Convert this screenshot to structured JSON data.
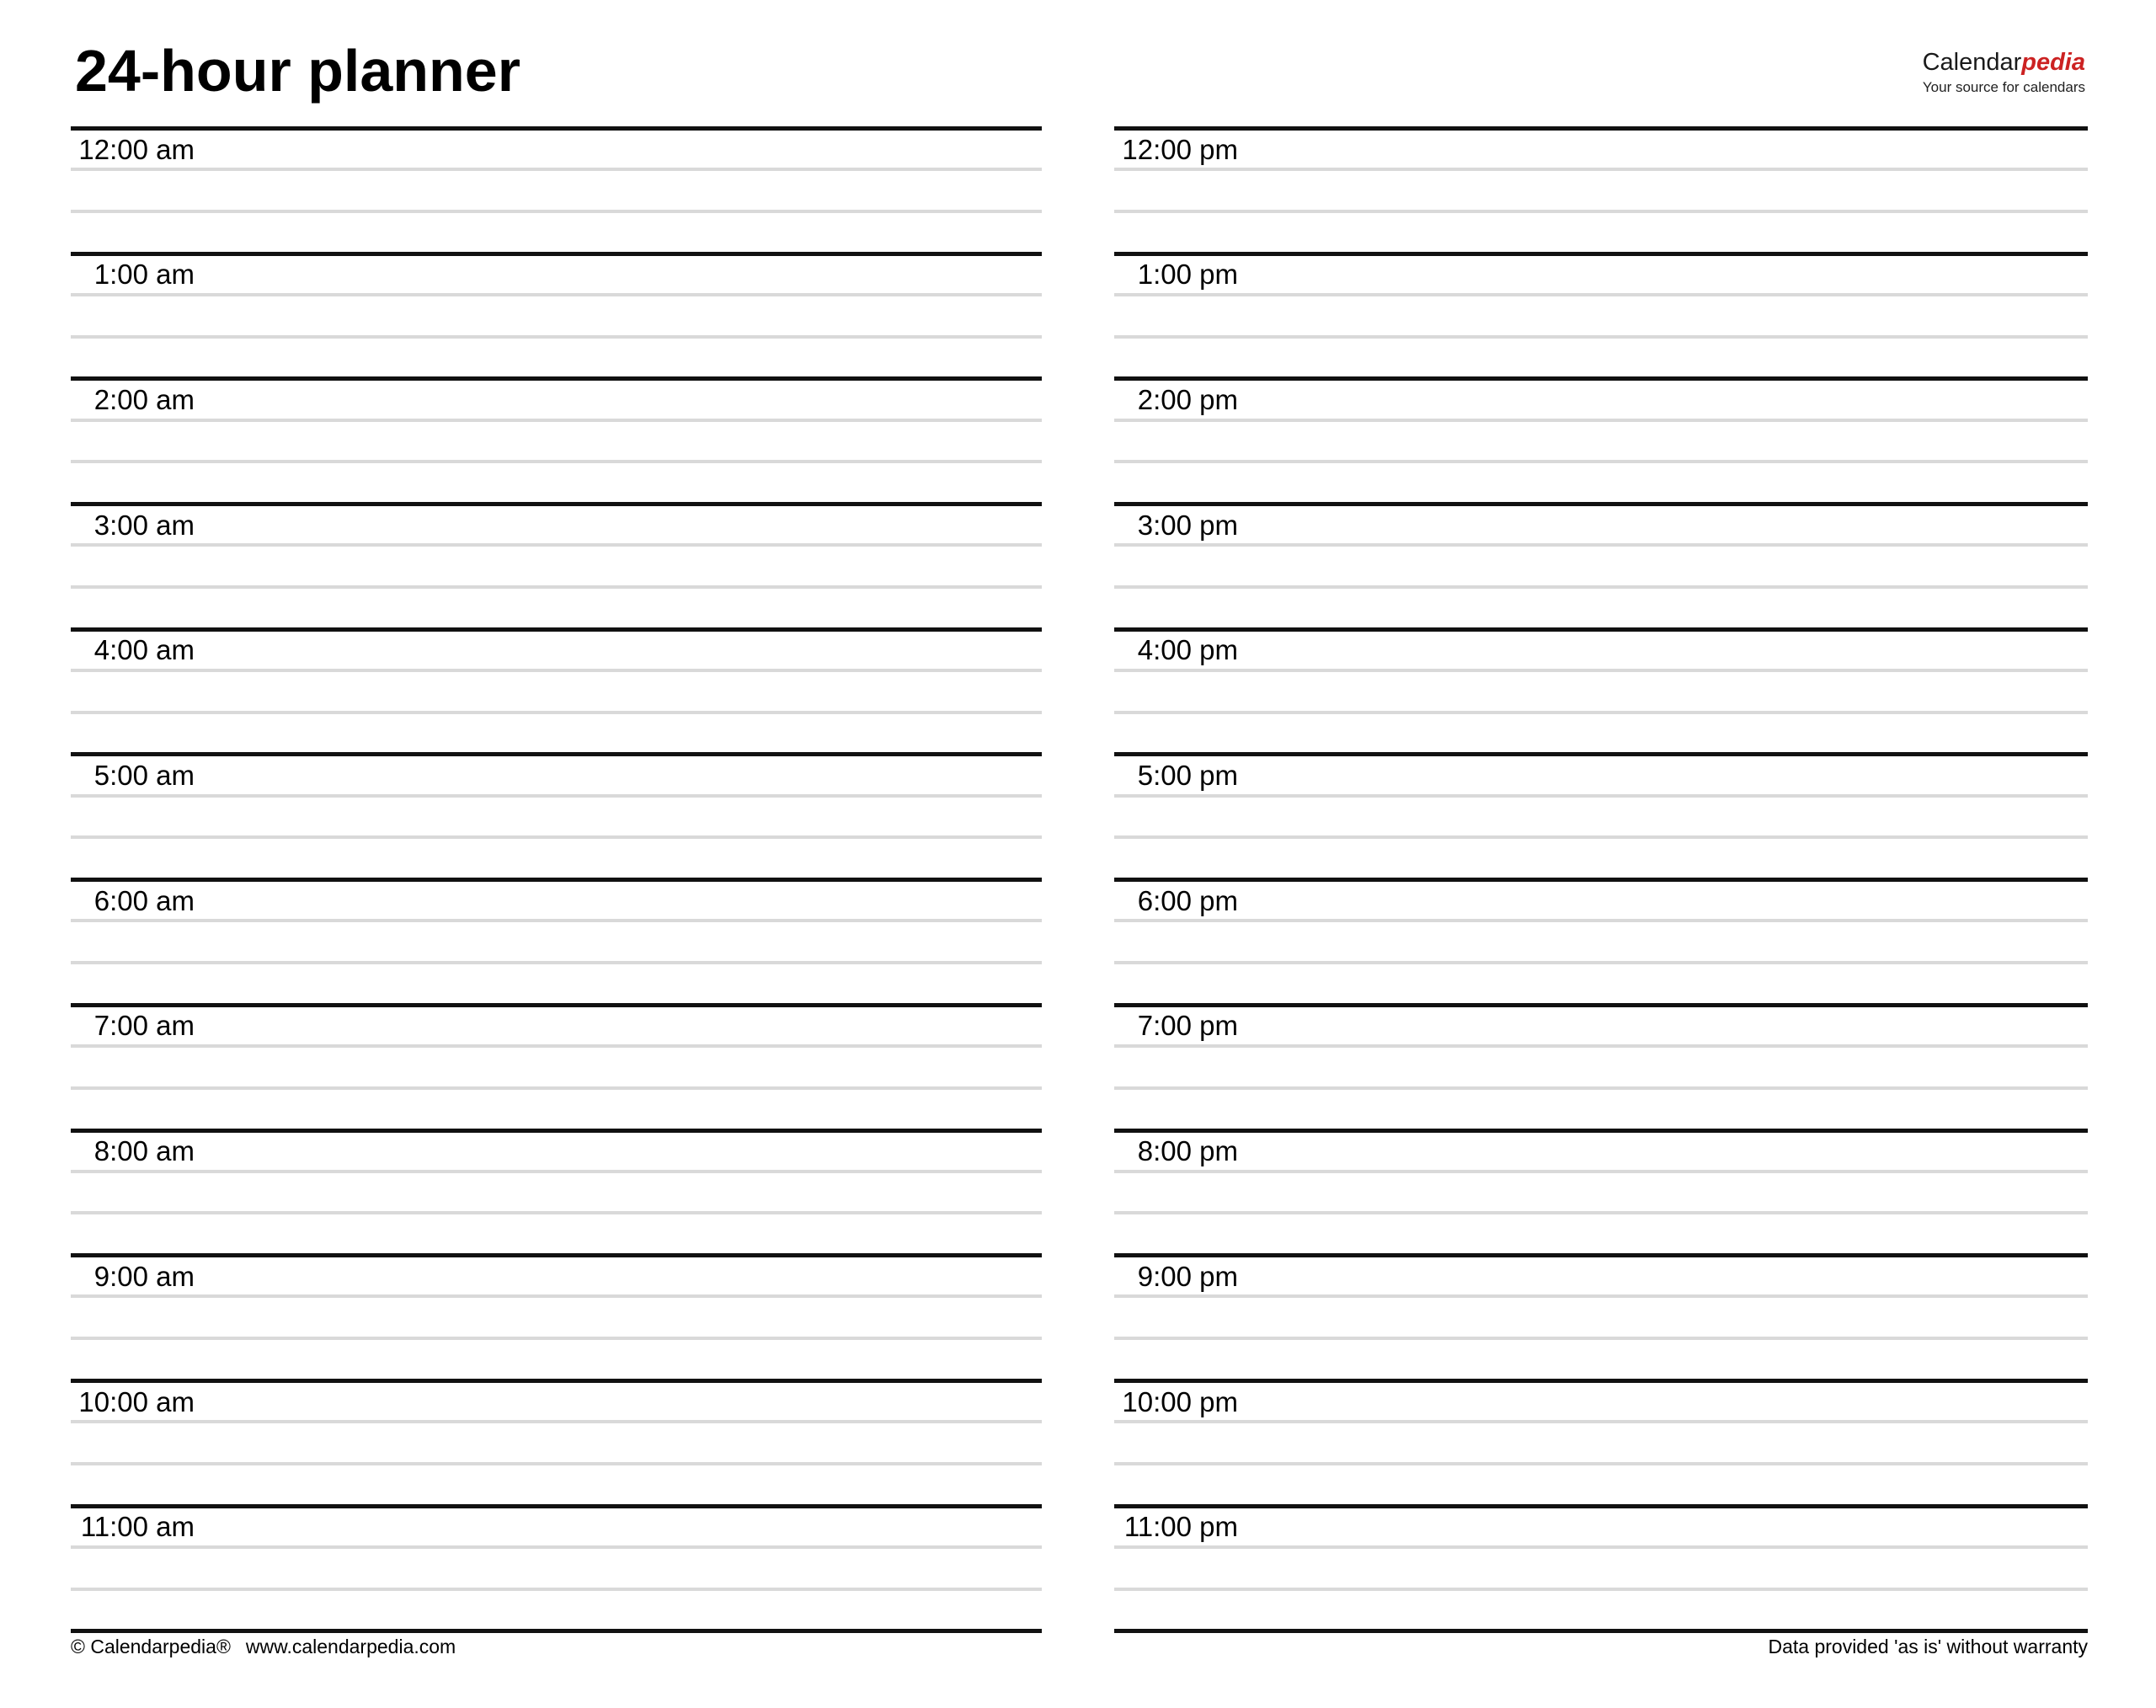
{
  "page": {
    "title": "24-hour planner",
    "background_color": "#ffffff"
  },
  "logo": {
    "brand_black": "Calendar",
    "brand_red": "pedia",
    "tagline": "Your source for calendars",
    "brand_red_color": "#cc2222"
  },
  "planner": {
    "columns": [
      {
        "name": "am",
        "hours": [
          "12:00 am",
          "1:00 am",
          "2:00 am",
          "3:00 am",
          "4:00 am",
          "5:00 am",
          "6:00 am",
          "7:00 am",
          "8:00 am",
          "9:00 am",
          "10:00 am",
          "11:00 am"
        ]
      },
      {
        "name": "pm",
        "hours": [
          "12:00 pm",
          "1:00 pm",
          "2:00 pm",
          "3:00 pm",
          "4:00 pm",
          "5:00 pm",
          "6:00 pm",
          "7:00 pm",
          "8:00 pm",
          "9:00 pm",
          "10:00 pm",
          "11:00 pm"
        ]
      }
    ],
    "writing_lines_per_hour": 2,
    "colors": {
      "hour_line": "#111111",
      "writing_line": "#d9d9d9"
    }
  },
  "footer": {
    "copyright": "© Calendarpedia®",
    "url": "www.calendarpedia.com",
    "disclaimer": "Data provided 'as is' without warranty"
  }
}
